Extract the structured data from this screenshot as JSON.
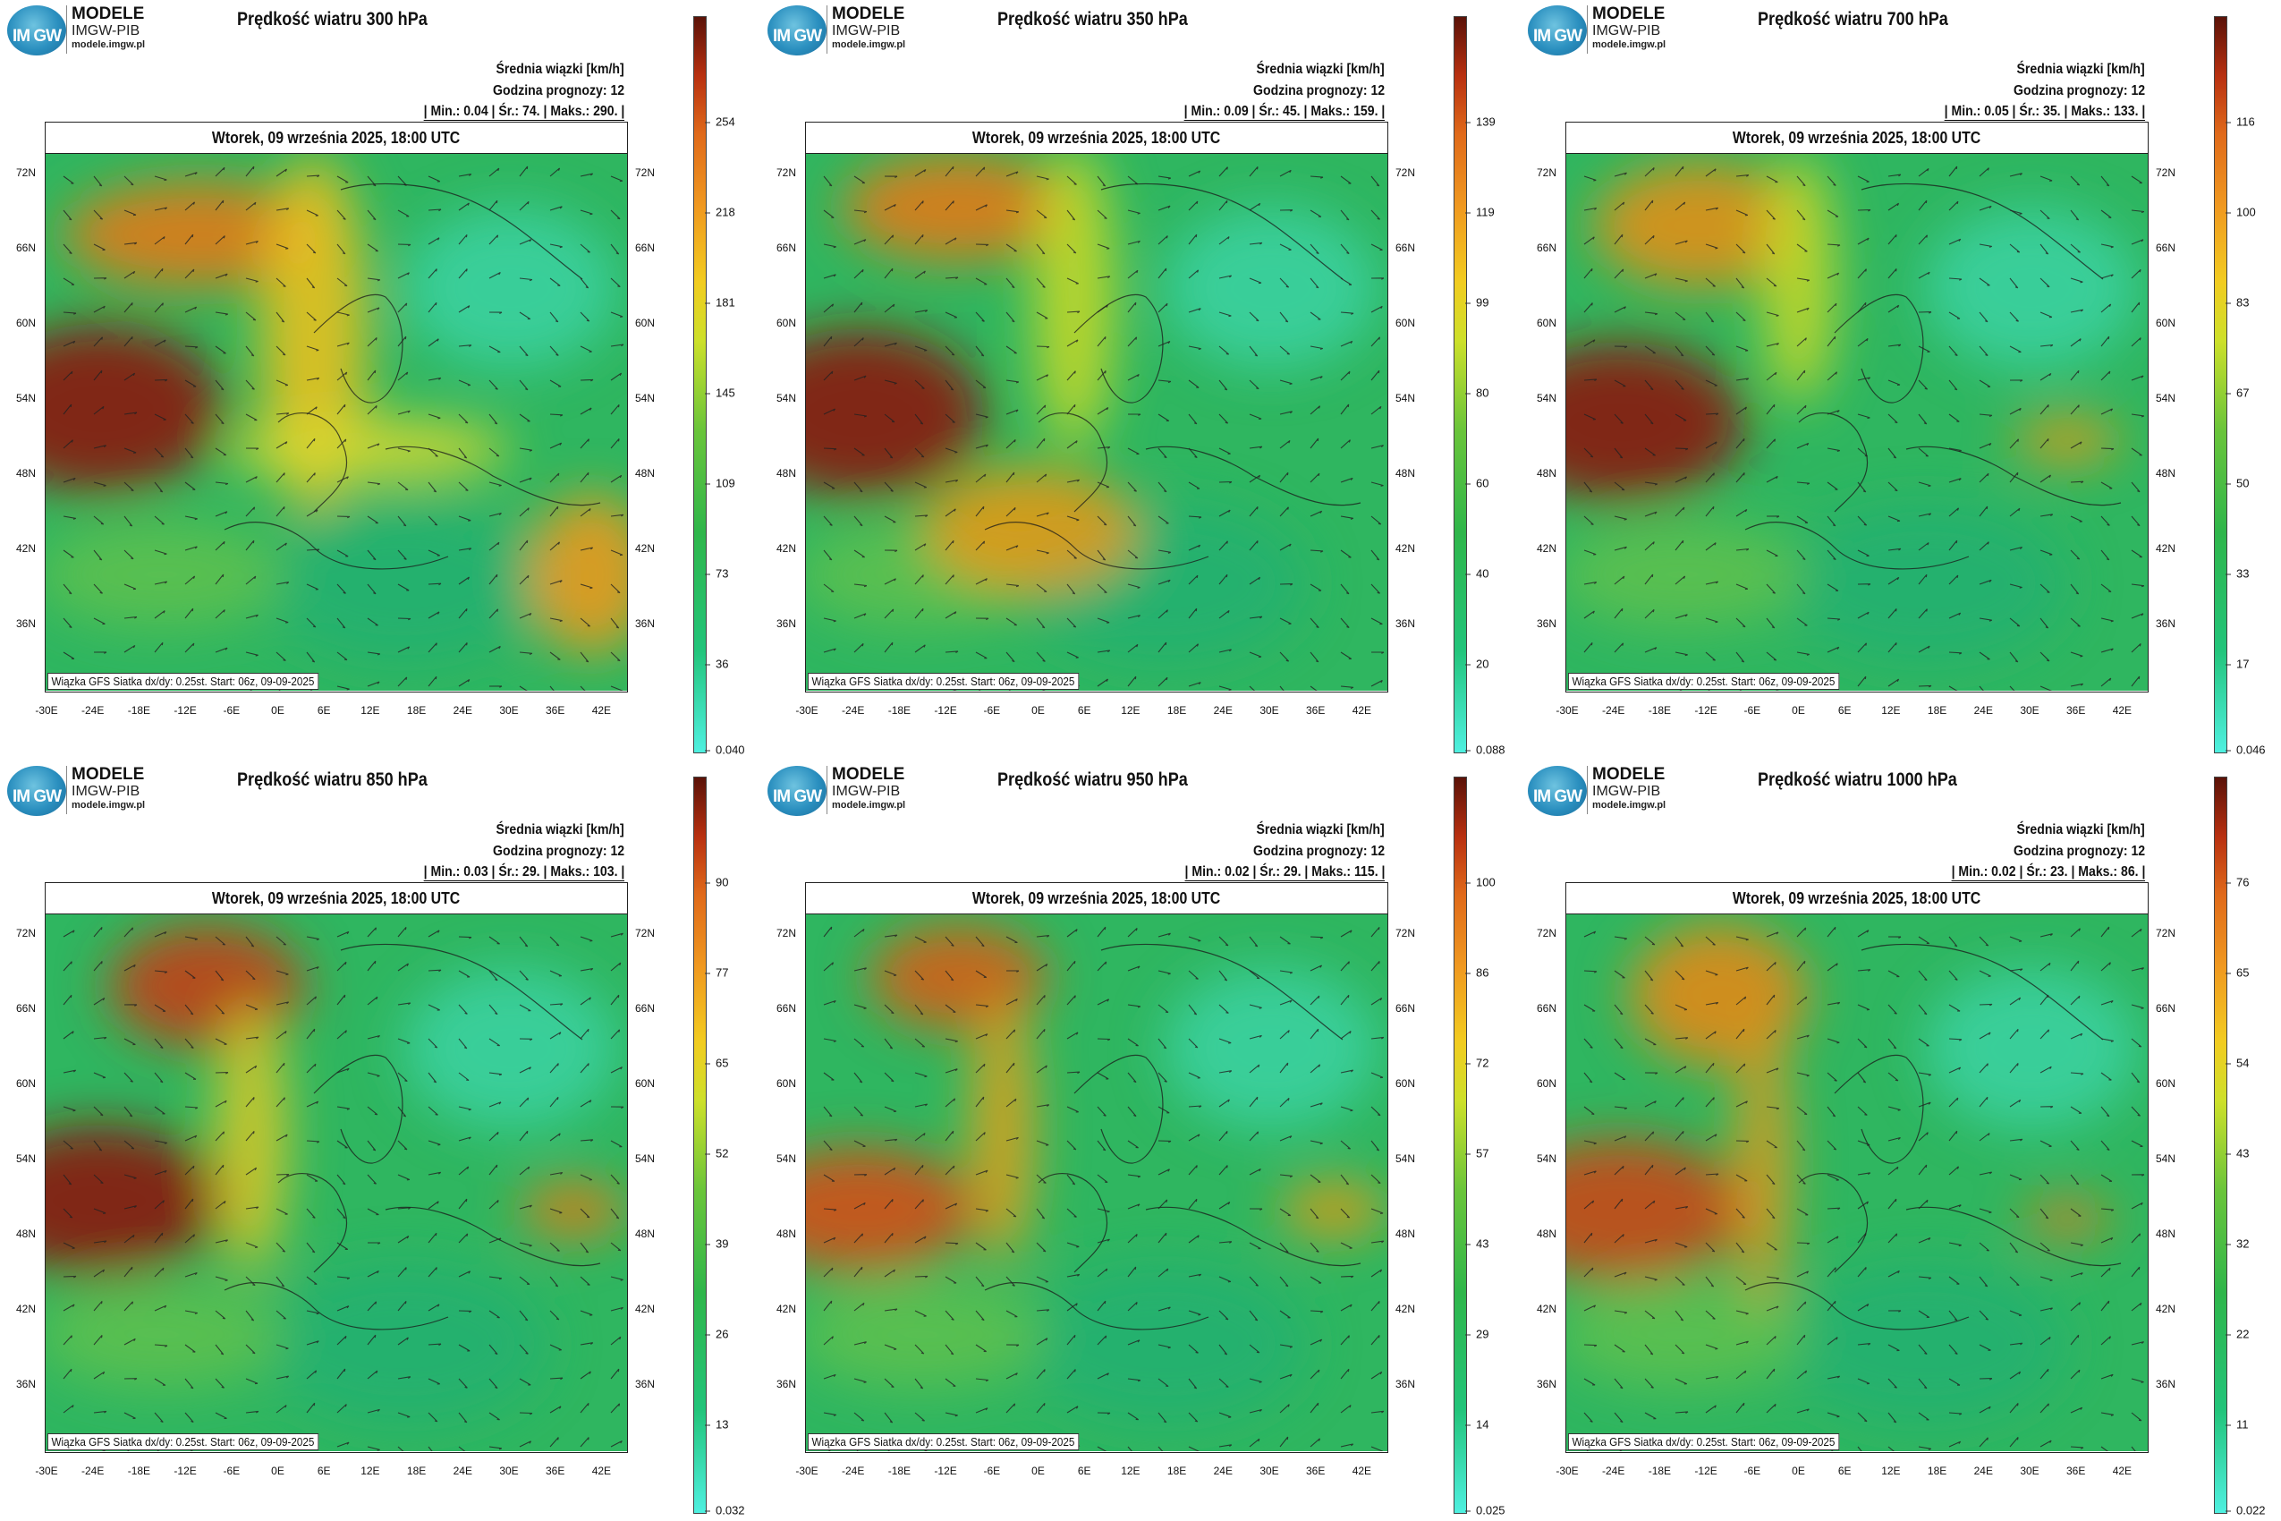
{
  "brand": {
    "logo_text": "IM GW",
    "line1": "MODELE",
    "line2": "IMGW-PIB",
    "line3": "modele.imgw.pl"
  },
  "common": {
    "units_label": "Średnia wiązki [km/h]",
    "forecast_hour": "Godzina prognozy: 12",
    "date": "Wtorek, 09 września 2025, 18:00 UTC",
    "footer": "Wiązka GFS Siatka dx/dy: 0.25st. Start: 06z, 09-09-2025",
    "lat_labels": [
      "72N",
      "66N",
      "60N",
      "54N",
      "48N",
      "42N",
      "36N"
    ],
    "lon_labels": [
      "-30E",
      "-24E",
      "-18E",
      "-12E",
      "-6E",
      "0E",
      "6E",
      "12E",
      "18E",
      "24E",
      "30E",
      "36E",
      "42E"
    ]
  },
  "panels": [
    {
      "title": "Prędkość wiatru 300 hPa",
      "stats": "| Min.: 0.04 | Śr.: 74. | Maks.: 290. |",
      "colorbar": [
        "254",
        "218",
        "181",
        "145",
        "109",
        "73",
        "36",
        "0.040"
      ]
    },
    {
      "title": "Prędkość wiatru 350 hPa",
      "stats": "| Min.: 0.09 | Śr.: 45. | Maks.: 159. |",
      "colorbar": [
        "139",
        "119",
        "99",
        "80",
        "60",
        "40",
        "20",
        "0.088"
      ]
    },
    {
      "title": "Prędkość wiatru 700 hPa",
      "stats": "| Min.: 0.05 | Śr.: 35. | Maks.: 133. |",
      "colorbar": [
        "116",
        "100",
        "83",
        "67",
        "50",
        "33",
        "17",
        "0.046"
      ]
    },
    {
      "title": "Prędkość wiatru 850 hPa",
      "stats": "| Min.: 0.03 | Śr.: 29. | Maks.: 103. |",
      "colorbar": [
        "90",
        "77",
        "65",
        "52",
        "39",
        "26",
        "13",
        "0.032"
      ]
    },
    {
      "title": "Prędkość wiatru 950 hPa",
      "stats": "| Min.: 0.02 | Śr.: 29. | Maks.: 115. |",
      "colorbar": [
        "100",
        "86",
        "72",
        "57",
        "43",
        "29",
        "14",
        "0.025"
      ]
    },
    {
      "title": "Prędkość wiatru 1000 hPa",
      "stats": "| Min.: 0.02 | Śr.: 23. | Maks.: 86. |",
      "colorbar": [
        "76",
        "65",
        "54",
        "43",
        "32",
        "22",
        "11",
        "0.022"
      ]
    }
  ]
}
